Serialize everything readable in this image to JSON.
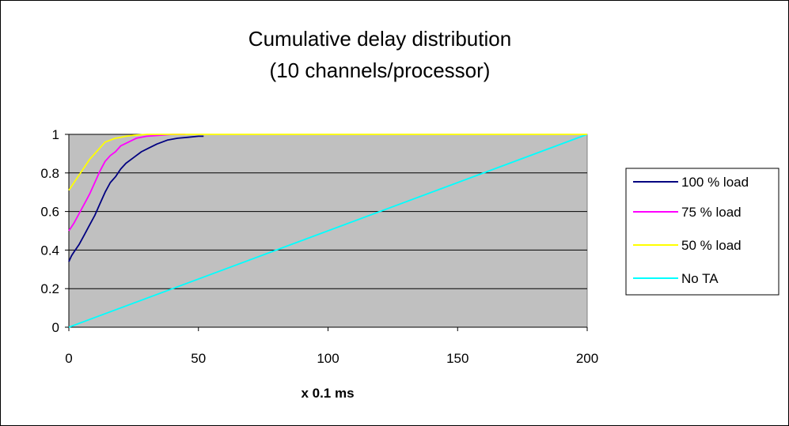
{
  "chart_data": {
    "type": "line",
    "title": "Cumulative delay distribution",
    "subtitle": "(10 channels/processor)",
    "xlabel": "x 0.1 ms",
    "ylabel": "",
    "xlim": [
      0,
      200
    ],
    "ylim": [
      0,
      1
    ],
    "x_ticks": [
      "0",
      "50",
      "100",
      "150",
      "200"
    ],
    "y_ticks": [
      "0",
      "0.2",
      "0.4",
      "0.6",
      "0.8",
      "1"
    ],
    "grid": "horizontal",
    "legend_position": "right",
    "plot_background": "#c0c0c0",
    "series": [
      {
        "name": "100 % load",
        "color": "#000080",
        "x": [
          0,
          1,
          2,
          4,
          6,
          8,
          10,
          12,
          14,
          16,
          18,
          20,
          22,
          25,
          28,
          31,
          34,
          38,
          42,
          46,
          50,
          52
        ],
        "y": [
          0.34,
          0.37,
          0.39,
          0.43,
          0.48,
          0.53,
          0.58,
          0.64,
          0.7,
          0.75,
          0.78,
          0.82,
          0.85,
          0.88,
          0.91,
          0.93,
          0.95,
          0.97,
          0.98,
          0.985,
          0.99,
          0.99
        ]
      },
      {
        "name": "75 % load",
        "color": "#ff00ff",
        "x": [
          0,
          1,
          2,
          4,
          6,
          8,
          10,
          12,
          14,
          16,
          18,
          20,
          23,
          26,
          30,
          35,
          40,
          45
        ],
        "y": [
          0.5,
          0.52,
          0.54,
          0.59,
          0.64,
          0.69,
          0.75,
          0.81,
          0.86,
          0.89,
          0.91,
          0.94,
          0.96,
          0.98,
          0.99,
          0.995,
          1.0,
          1.0
        ]
      },
      {
        "name": "50 % load",
        "color": "#ffff00",
        "x": [
          0,
          1,
          2,
          4,
          6,
          8,
          10,
          12,
          14,
          16,
          18,
          20,
          22,
          25,
          30,
          35,
          40,
          200
        ],
        "y": [
          0.71,
          0.73,
          0.75,
          0.79,
          0.83,
          0.87,
          0.9,
          0.93,
          0.96,
          0.97,
          0.98,
          0.985,
          0.99,
          0.995,
          1.0,
          1.0,
          1.0,
          1.0
        ]
      },
      {
        "name": "No TA",
        "color": "#00ffff",
        "x": [
          0,
          200
        ],
        "y": [
          0,
          1.0
        ]
      }
    ]
  }
}
